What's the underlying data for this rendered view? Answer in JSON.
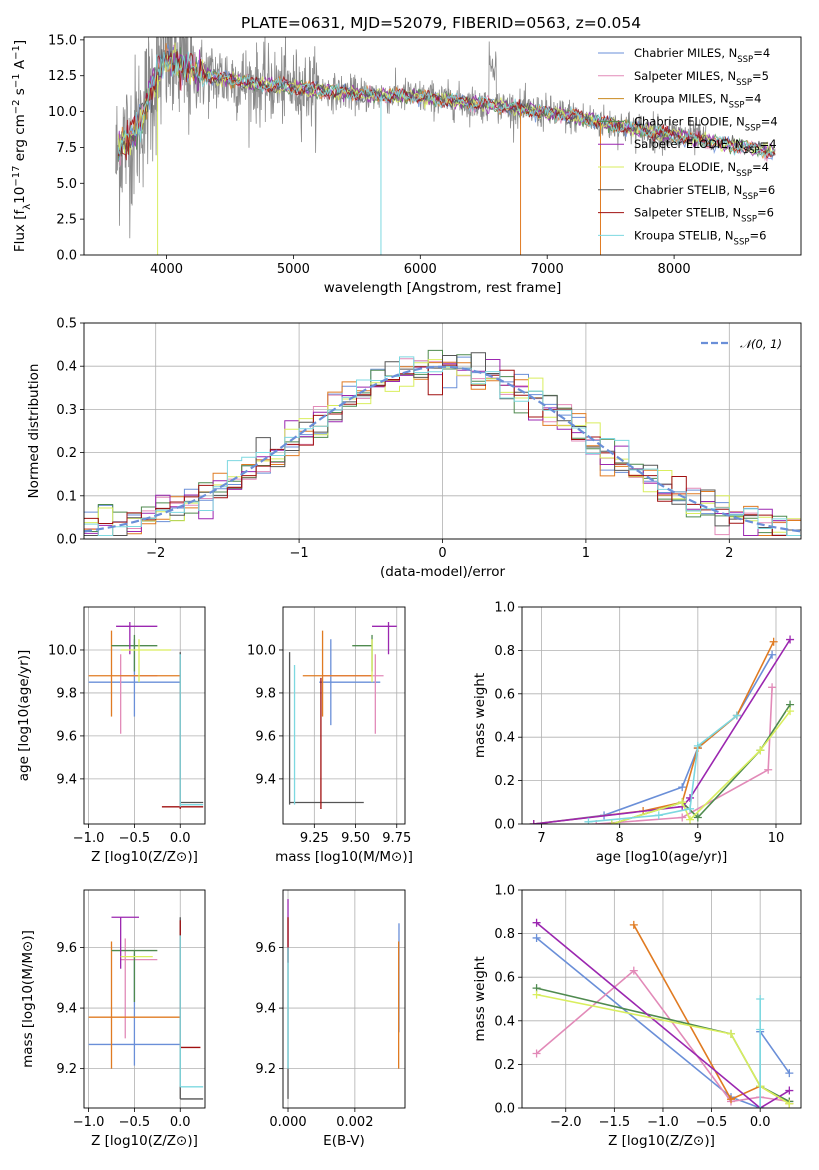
{
  "figure": {
    "title": "PLATE=0631, MJD=52079, FIBERID=0563, z=0.054"
  },
  "colors": {
    "Chabrier MILES": "#6a8fd8",
    "Salpeter MILES": "#e28ab8",
    "Kroupa MILES": "#c9891f",
    "Chabrier ELODIE": "#4f8a4f",
    "Salpeter ELODIE": "#9b27b0",
    "Kroupa ELODIE": "#d9ee5e",
    "Chabrier STELIB": "#555555",
    "Salpeter STELIB": "#a01010",
    "Kroupa STELIB": "#7dd8e0",
    "orange": "#e07b22",
    "data": "#8a8a8a",
    "gaussian": "#6a8fd8"
  },
  "chart_data": [
    {
      "id": "spectrum",
      "type": "line",
      "xlabel": "wavelength [Angstrom, rest frame]",
      "ylabel_parts": [
        "Flux [f",
        "λ",
        "10",
        "−17",
        " erg cm",
        "−2",
        " s",
        "−1",
        " A",
        "−1",
        "]"
      ],
      "xlim": [
        3350,
        9000
      ],
      "ylim": [
        0,
        15.2
      ],
      "xticks": [
        "4000",
        "5000",
        "6000",
        "7000",
        "8000"
      ],
      "yticks": [
        "0.0",
        "2.5",
        "5.0",
        "7.5",
        "10.0",
        "12.5",
        "15.0"
      ],
      "continuum": [
        [
          3600,
          6.5
        ],
        [
          3650,
          8.0
        ],
        [
          3700,
          7.8
        ],
        [
          3800,
          9.5
        ],
        [
          3900,
          12.0
        ],
        [
          4000,
          13.8
        ],
        [
          4100,
          13.2
        ],
        [
          4200,
          12.8
        ],
        [
          4300,
          12.5
        ],
        [
          4500,
          12.3
        ],
        [
          4700,
          11.9
        ],
        [
          4900,
          11.8
        ],
        [
          5100,
          11.6
        ],
        [
          5300,
          11.4
        ],
        [
          5500,
          11.2
        ],
        [
          5700,
          11.1
        ],
        [
          5900,
          11.1
        ],
        [
          6100,
          10.9
        ],
        [
          6300,
          10.7
        ],
        [
          6500,
          10.5
        ],
        [
          6700,
          10.3
        ],
        [
          6900,
          10.0
        ],
        [
          7100,
          9.8
        ],
        [
          7300,
          9.5
        ],
        [
          7500,
          9.1
        ],
        [
          7700,
          8.8
        ],
        [
          7900,
          8.5
        ],
        [
          8100,
          8.2
        ],
        [
          8300,
          7.9
        ],
        [
          8500,
          7.6
        ],
        [
          8700,
          7.3
        ],
        [
          8900,
          7.1
        ]
      ],
      "data_end": 8250,
      "model_end": 8800,
      "legend": [
        {
          "label": "Chabrier MILES",
          "n": "4"
        },
        {
          "label": "Salpeter MILES",
          "n": "5"
        },
        {
          "label": "Kroupa MILES",
          "n": "4"
        },
        {
          "label": "Chabrier ELODIE",
          "n": "4"
        },
        {
          "label": "Salpeter ELODIE",
          "n": "4"
        },
        {
          "label": "Kroupa ELODIE",
          "n": "4"
        },
        {
          "label": "Chabrier STELIB",
          "n": "6"
        },
        {
          "label": "Salpeter STELIB",
          "n": "6"
        },
        {
          "label": "Kroupa STELIB",
          "n": "6"
        }
      ],
      "legend_nsub": "SSP"
    },
    {
      "id": "residuals",
      "type": "histogram",
      "xlabel": "(data-model)/error",
      "ylabel": "Normed distribution",
      "xlim": [
        -2.5,
        2.5
      ],
      "ylim": [
        0,
        0.5
      ],
      "xticks": [
        "−2",
        "−1",
        "0",
        "1",
        "2"
      ],
      "yticks": [
        "0.0",
        "0.1",
        "0.2",
        "0.3",
        "0.4",
        "0.5"
      ],
      "gaussian_label": "𝒩(0, 1)",
      "bin_width": 0.1,
      "bin_start": -2.5
    },
    {
      "id": "age-vs-Z",
      "type": "errorbar",
      "xlabel": "Z [log10(Z/Z⊙)]",
      "ylabel": "age  [log10(age/yr)]",
      "xlim": [
        -1.05,
        0.27
      ],
      "ylim": [
        9.19,
        10.2
      ],
      "xticks": [
        "−1.0",
        "−0.5",
        "0.0"
      ],
      "yticks": [
        "9.4",
        "9.6",
        "9.8",
        "10.0"
      ],
      "points": [
        {
          "model": "Chabrier MILES",
          "x": -0.5,
          "y": 9.85,
          "xerr": [
            0.5,
            0.5
          ],
          "yerr": [
            0.16,
            0.2
          ]
        },
        {
          "model": "Salpeter MILES",
          "x": -0.65,
          "y": 9.88,
          "xerr": [
            0.0,
            0.4
          ],
          "yerr": [
            0.27,
            0.1
          ]
        },
        {
          "model": "orange",
          "x": -0.75,
          "y": 9.88,
          "xerr": [
            0.25,
            0.75
          ],
          "yerr": [
            0.19,
            0.21
          ]
        },
        {
          "model": "Chabrier ELODIE",
          "x": -0.5,
          "y": 10.02,
          "xerr": [
            0.25,
            0.25
          ],
          "yerr": [
            0.12,
            0.05
          ]
        },
        {
          "model": "Salpeter ELODIE",
          "x": -0.55,
          "y": 10.11,
          "xerr": [
            0.15,
            0.3
          ],
          "yerr": [
            0.13,
            0.02
          ]
        },
        {
          "model": "Kroupa ELODIE",
          "x": -0.45,
          "y": 10.0,
          "xerr": [
            0.2,
            0.35
          ],
          "yerr": [
            0.15,
            0.05
          ]
        },
        {
          "model": "Chabrier STELIB",
          "x": 0.0,
          "y": 9.29,
          "xerr": [
            0.0,
            0.25
          ],
          "yerr": [
            0.01,
            0.7
          ]
        },
        {
          "model": "Salpeter STELIB",
          "x": 0.0,
          "y": 9.27,
          "xerr": [
            0.2,
            0.25
          ],
          "yerr": [
            0.01,
            0.7
          ]
        },
        {
          "model": "Kroupa STELIB",
          "x": 0.0,
          "y": 9.28,
          "xerr": [
            0.0,
            0.25
          ],
          "yerr": [
            0.01,
            0.7
          ]
        }
      ]
    },
    {
      "id": "age-vs-mass",
      "type": "errorbar",
      "xlabel": "mass [log10(M/M⊙)]",
      "ylabel": "",
      "xlim": [
        9.06,
        9.8
      ],
      "ylim": [
        9.19,
        10.2
      ],
      "xticks": [
        "9.25",
        "9.50",
        "9.75"
      ],
      "yticks": [
        "9.4",
        "9.6",
        "9.8",
        "10.0"
      ],
      "points": [
        {
          "model": "Chabrier MILES",
          "x": 9.35,
          "y": 9.85,
          "xerr": [
            0.07,
            0.3
          ],
          "yerr": [
            0.2,
            0.2
          ]
        },
        {
          "model": "Salpeter MILES",
          "x": 9.62,
          "y": 9.88,
          "xerr": [
            0.32,
            0.05
          ],
          "yerr": [
            0.27,
            0.1
          ]
        },
        {
          "model": "orange",
          "x": 9.3,
          "y": 9.88,
          "xerr": [
            0.12,
            0.3
          ],
          "yerr": [
            0.19,
            0.21
          ]
        },
        {
          "model": "Chabrier ELODIE",
          "x": 9.6,
          "y": 10.02,
          "xerr": [
            0.12,
            0.0
          ],
          "yerr": [
            0.12,
            0.05
          ]
        },
        {
          "model": "Salpeter ELODIE",
          "x": 9.7,
          "y": 10.11,
          "xerr": [
            0.1,
            0.05
          ],
          "yerr": [
            0.13,
            0.02
          ]
        },
        {
          "model": "Kroupa ELODIE",
          "x": 9.6,
          "y": 10.0,
          "xerr": [
            0.0,
            0.0
          ],
          "yerr": [
            0.15,
            0.05
          ]
        },
        {
          "model": "Chabrier STELIB",
          "x": 9.1,
          "y": 9.29,
          "xerr": [
            0.0,
            0.45
          ],
          "yerr": [
            0.01,
            0.7
          ]
        },
        {
          "model": "Salpeter STELIB",
          "x": 9.29,
          "y": 9.27,
          "xerr": [
            0.0,
            0.0
          ],
          "yerr": [
            0.01,
            0.6
          ]
        },
        {
          "model": "Kroupa STELIB",
          "x": 9.13,
          "y": 9.29,
          "xerr": [
            0.0,
            0.0
          ],
          "yerr": [
            0.01,
            0.64
          ]
        }
      ]
    },
    {
      "id": "weight-vs-age",
      "type": "line",
      "xlabel": "age  [log10(age/yr)]",
      "ylabel": "mass weight",
      "xlim": [
        6.75,
        10.32
      ],
      "ylim": [
        0,
        1
      ],
      "xticks": [
        "7",
        "8",
        "9",
        "10"
      ],
      "yticks": [
        "0.0",
        "0.2",
        "0.4",
        "0.6",
        "0.8",
        "1.0"
      ],
      "series": [
        {
          "model": "Chabrier MILES",
          "x": [
            6.9,
            7.8,
            8.8,
            9.0,
            9.5,
            9.95
          ],
          "y": [
            0.0,
            0.04,
            0.17,
            0.35,
            0.5,
            0.78
          ]
        },
        {
          "model": "Salpeter MILES",
          "x": [
            7.7,
            8.8,
            9.9,
            9.95
          ],
          "y": [
            0.0,
            0.03,
            0.25,
            0.63
          ]
        },
        {
          "model": "orange",
          "x": [
            6.9,
            8.3,
            8.8,
            9.0,
            9.5,
            9.97
          ],
          "y": [
            0.0,
            0.06,
            0.1,
            0.35,
            0.5,
            0.84
          ]
        },
        {
          "model": "Chabrier ELODIE",
          "x": [
            7.9,
            8.8,
            9.0,
            9.8,
            10.18
          ],
          "y": [
            0.0,
            0.1,
            0.03,
            0.34,
            0.55
          ]
        },
        {
          "model": "Salpeter ELODIE",
          "x": [
            6.9,
            8.8,
            8.9,
            10.18
          ],
          "y": [
            0.0,
            0.08,
            0.12,
            0.85
          ]
        },
        {
          "model": "Kroupa ELODIE",
          "x": [
            7.9,
            8.8,
            8.9,
            9.8,
            10.18
          ],
          "y": [
            0.0,
            0.1,
            0.02,
            0.34,
            0.52
          ]
        },
        {
          "model": "Kroupa STELIB",
          "x": [
            7.6,
            8.5,
            8.9,
            9.0,
            9.5
          ],
          "y": [
            0.01,
            0.04,
            0.07,
            0.36,
            0.5
          ]
        }
      ]
    },
    {
      "id": "mass-vs-Z",
      "type": "errorbar",
      "xlabel": "Z [log10(Z/Z⊙)]",
      "ylabel": "mass [log10(M/M⊙)]",
      "xlim": [
        -1.05,
        0.27
      ],
      "ylim": [
        9.07,
        9.79
      ],
      "xticks": [
        "−1.0",
        "−0.5",
        "0.0"
      ],
      "yticks": [
        "9.2",
        "9.4",
        "9.6"
      ],
      "points": [
        {
          "model": "Chabrier MILES",
          "x": -0.5,
          "y": 9.28,
          "xerr": [
            0.5,
            0.5
          ],
          "yerr": [
            0.07,
            0.3
          ]
        },
        {
          "model": "Salpeter MILES",
          "x": -0.6,
          "y": 9.56,
          "xerr": [
            0.05,
            0.35
          ],
          "yerr": [
            0.26,
            0.07
          ]
        },
        {
          "model": "orange",
          "x": -0.75,
          "y": 9.37,
          "xerr": [
            0.25,
            0.75
          ],
          "yerr": [
            0.17,
            0.25
          ]
        },
        {
          "model": "Chabrier ELODIE",
          "x": -0.5,
          "y": 9.59,
          "xerr": [
            0.25,
            0.25
          ],
          "yerr": [
            0.17,
            0.0
          ]
        },
        {
          "model": "Salpeter ELODIE",
          "x": -0.65,
          "y": 9.7,
          "xerr": [
            0.1,
            0.2
          ],
          "yerr": [
            0.17,
            0.0
          ]
        },
        {
          "model": "Kroupa ELODIE",
          "x": -0.45,
          "y": 9.57,
          "xerr": [
            0.2,
            0.15
          ],
          "yerr": [
            0.0,
            0.0
          ]
        },
        {
          "model": "Chabrier STELIB",
          "x": 0.0,
          "y": 9.1,
          "xerr": [
            0.0,
            0.25
          ],
          "yerr": [
            0.0,
            0.6
          ]
        },
        {
          "model": "Salpeter STELIB",
          "x": 0.0,
          "y": 9.27,
          "xerr": [
            0.0,
            0.22
          ],
          "yerr": [
            0.0,
            0.42
          ]
        },
        {
          "model": "Kroupa STELIB",
          "x": 0.0,
          "y": 9.14,
          "xerr": [
            0.0,
            0.25
          ],
          "yerr": [
            0.0,
            0.5
          ]
        }
      ]
    },
    {
      "id": "mass-vs-EBV",
      "type": "errorbar",
      "xlabel": "E(B-V)",
      "ylabel": "",
      "xlim": [
        -0.00015,
        0.0035
      ],
      "ylim": [
        9.07,
        9.79
      ],
      "xticks": [
        "0.000",
        "0.002"
      ],
      "yticks": [
        "9.2",
        "9.4",
        "9.6"
      ],
      "points": [
        {
          "model": "Chabrier MILES",
          "x": 0.00332,
          "y": 9.5,
          "xerr": [
            0,
            0
          ],
          "yerr": [
            0.18,
            0.18
          ]
        },
        {
          "model": "orange",
          "x": 0.00331,
          "y": 9.4,
          "xerr": [
            0,
            0
          ],
          "yerr": [
            0.2,
            0.22
          ]
        },
        {
          "model": "Salpeter ELODIE",
          "x": 0.0,
          "y": 9.65,
          "xerr": [
            0,
            0
          ],
          "yerr": [
            0.1,
            0.11
          ]
        },
        {
          "model": "Salpeter STELIB",
          "x": 0.0,
          "y": 9.6,
          "xerr": [
            0,
            0
          ],
          "yerr": [
            0.05,
            0.1
          ]
        },
        {
          "model": "Chabrier STELIB",
          "x": 0.0,
          "y": 9.2,
          "xerr": [
            0,
            0
          ],
          "yerr": [
            0.1,
            0.4
          ]
        },
        {
          "model": "Kroupa STELIB",
          "x": 0.0,
          "y": 9.3,
          "xerr": [
            0,
            0
          ],
          "yerr": [
            0.1,
            0.3
          ]
        }
      ]
    },
    {
      "id": "weight-vs-Z",
      "type": "line",
      "xlabel": "Z [log10(Z/Z⊙)]",
      "ylabel": "mass weight",
      "xlim": [
        -2.45,
        0.42
      ],
      "ylim": [
        0,
        1
      ],
      "xticks": [
        "−2.0",
        "−1.5",
        "−1.0",
        "−0.5",
        "0.0"
      ],
      "yticks": [
        "0.0",
        "0.2",
        "0.4",
        "0.6",
        "0.8",
        "1.0"
      ],
      "series": [
        {
          "model": "Chabrier MILES",
          "x": [
            -2.3,
            -0.3,
            0.0,
            0.0,
            0.3
          ],
          "y": [
            0.78,
            0.05,
            0.0,
            0.35,
            0.16
          ]
        },
        {
          "model": "Salpeter MILES",
          "x": [
            -2.3,
            -1.3,
            -0.3,
            0.0,
            0.3
          ],
          "y": [
            0.25,
            0.63,
            0.03,
            0.05,
            0.03
          ]
        },
        {
          "model": "orange",
          "x": [
            -1.3,
            -0.3,
            0.0,
            0.3
          ],
          "y": [
            0.84,
            0.04,
            0.1,
            0.02
          ]
        },
        {
          "model": "Chabrier ELODIE",
          "x": [
            -2.3,
            -0.3,
            0.0,
            0.3
          ],
          "y": [
            0.55,
            0.34,
            0.1,
            0.03
          ]
        },
        {
          "model": "Salpeter ELODIE",
          "x": [
            -2.3,
            0.0,
            0.3
          ],
          "y": [
            0.85,
            0.0,
            0.08
          ]
        },
        {
          "model": "Kroupa ELODIE",
          "x": [
            -2.3,
            -0.3,
            0.0,
            0.3
          ],
          "y": [
            0.52,
            0.34,
            0.1,
            0.02
          ]
        },
        {
          "model": "Kroupa STELIB",
          "x": [
            0.0,
            0.0,
            0.0
          ],
          "y": [
            0.5,
            0.0,
            0.36
          ]
        }
      ]
    }
  ]
}
